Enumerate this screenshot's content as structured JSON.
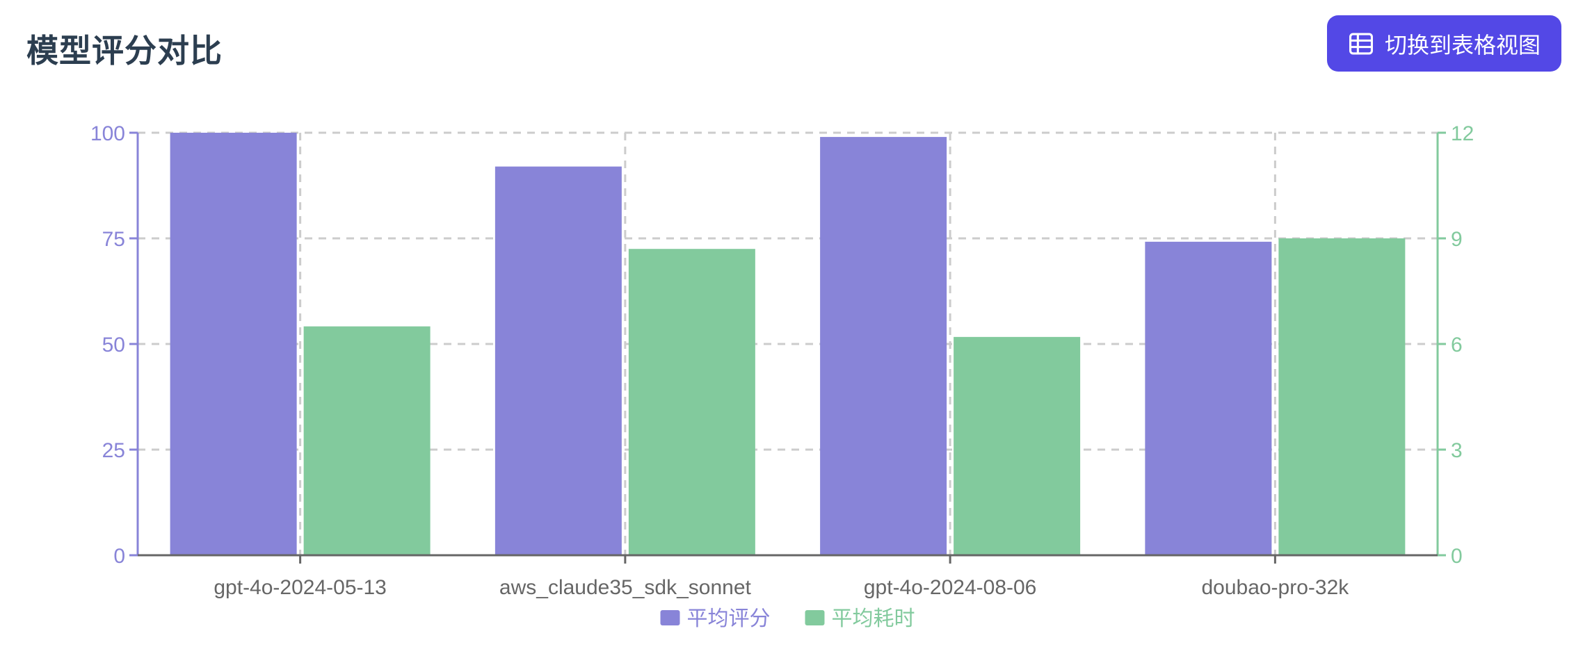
{
  "page": {
    "title": "模型评分对比",
    "background": "#ffffff",
    "title_color": "#2c3e50"
  },
  "toolbar": {
    "switch_view_button": {
      "label": "切换到表格视图",
      "icon": "table-icon",
      "background": "#5348e6",
      "text_color": "#ffffff"
    }
  },
  "chart_data": {
    "type": "bar",
    "title": "模型评分对比",
    "categories": [
      "gpt-4o-2024-05-13",
      "aws_claude35_sdk_sonnet",
      "gpt-4o-2024-08-06",
      "doubao-pro-32k"
    ],
    "series": [
      {
        "key": "score",
        "name": "平均评分",
        "axis": "left",
        "color": "#8884d8",
        "values": [
          100,
          92,
          99,
          74.2
        ]
      },
      {
        "key": "time",
        "name": "平均耗时",
        "axis": "right",
        "color": "#82ca9d",
        "values": [
          6.5,
          8.7,
          6.2,
          9
        ]
      }
    ],
    "left_axis": {
      "ticks": [
        0,
        25,
        50,
        75,
        100
      ],
      "range": [
        0,
        100
      ],
      "color": "#8884d8"
    },
    "right_axis": {
      "ticks": [
        0,
        3,
        6,
        9,
        12
      ],
      "range": [
        0,
        12
      ],
      "color": "#82ca9d"
    },
    "x_axis": {
      "color": "#666666"
    },
    "grid": {
      "color": "#cccccc",
      "dashed": true
    },
    "legend_position": "bottom"
  }
}
